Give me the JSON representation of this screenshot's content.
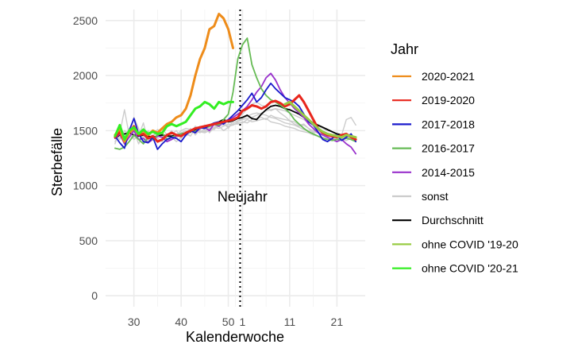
{
  "chart_data": {
    "type": "line",
    "xlabel": "Kalenderwoche",
    "ylabel": "Sterbefälle",
    "ylim": [
      -100,
      2600
    ],
    "yticks": [
      0,
      500,
      1000,
      1500,
      2000,
      2500
    ],
    "xticks": [
      {
        "label": "30",
        "pos": 4
      },
      {
        "label": "40",
        "pos": 14
      },
      {
        "label": "50",
        "pos": 24
      },
      {
        "label": "1",
        "pos": 27
      },
      {
        "label": "11",
        "pos": 37
      },
      {
        "label": "21",
        "pos": 47
      }
    ],
    "xlim": [
      -2,
      53
    ],
    "grid": true,
    "legend_title": "Jahr",
    "legend_position": "right",
    "annotation": {
      "text": "Neujahr",
      "x": 27,
      "y": 900
    },
    "vline_x": 26.5,
    "series": [
      {
        "name": "sonst",
        "color": "#cccccc",
        "width": 1.4,
        "values": [
          1400,
          1480,
          1450,
          1500,
          1420,
          1450,
          1480,
          1430,
          1420,
          1470,
          1450,
          1430,
          1420,
          1450,
          1480,
          1500,
          1490,
          1500,
          1480,
          1520,
          1510,
          1530,
          1520,
          1540,
          1560,
          1550,
          1580,
          1600,
          1610,
          1620,
          1640,
          1660,
          1680,
          1690,
          1700,
          1690,
          1680,
          1660,
          1640,
          1620,
          1600,
          1570,
          1560,
          1540,
          1520,
          1500,
          1490,
          1470,
          1460,
          1460,
          1450,
          1440
        ]
      },
      {
        "name": "sonst",
        "color": "#cccccc",
        "width": 1.4,
        "values": [
          1380,
          1520,
          1420,
          1470,
          1500,
          1380,
          1460,
          1400,
          1460,
          1430,
          1400,
          1460,
          1440,
          1400,
          1440,
          1470,
          1450,
          1520,
          1490,
          1480,
          1500,
          1520,
          1540,
          1500,
          1530,
          1560,
          1560,
          1580,
          1570,
          1600,
          1610,
          1620,
          1600,
          1640,
          1620,
          1610,
          1600,
          1590,
          1580,
          1550,
          1560,
          1520,
          1500,
          1480,
          1470,
          1460,
          1440,
          1420,
          1450,
          1430,
          1430,
          1420
        ]
      },
      {
        "name": "sonst",
        "color": "#cccccc",
        "width": 1.4,
        "values": [
          1450,
          1420,
          1500,
          1470,
          1620,
          1520,
          1400,
          1480,
          1450,
          1510,
          1480,
          1400,
          1470,
          1500,
          1430,
          1480,
          1520,
          1460,
          1510,
          1550,
          1480,
          1530,
          1560,
          1580,
          1520,
          1590,
          1620,
          1650,
          1700,
          1740,
          1760,
          1730,
          1720,
          1680,
          1700,
          1660,
          1630,
          1590,
          1560,
          1540,
          1550,
          1520,
          1480,
          1490,
          1460,
          1470,
          1440,
          1480,
          1460,
          1600,
          1620,
          1550
        ]
      },
      {
        "name": "sonst",
        "color": "#cccccc",
        "width": 1.4,
        "values": [
          1430,
          1470,
          1690,
          1460,
          1420,
          1450,
          1570,
          1400,
          1450,
          1480,
          1520,
          1460,
          1440,
          1460,
          1500,
          1520,
          1510,
          1480,
          1540,
          1500,
          1530,
          1550,
          1540,
          1560,
          1580,
          1570,
          1590,
          1610,
          1630,
          1650,
          1660,
          1650,
          1640,
          1620,
          1610,
          1590,
          1570,
          1560,
          1550,
          1530,
          1510,
          1500,
          1490,
          1480,
          1470,
          1450,
          1450,
          1440,
          1430,
          1450,
          1420,
          1410
        ]
      },
      {
        "name": "sonst",
        "color": "#cccccc",
        "width": 1.4,
        "values": [
          1460,
          1440,
          1430,
          1520,
          1440,
          1480,
          1440,
          1500,
          1430,
          1440,
          1470,
          1450,
          1500,
          1430,
          1470,
          1450,
          1480,
          1540,
          1500,
          1490,
          1520,
          1510,
          1560,
          1550,
          1540,
          1550,
          1570,
          1570,
          1600,
          1580,
          1590,
          1600,
          1610,
          1580,
          1570,
          1560,
          1540,
          1530,
          1520,
          1500,
          1490,
          1480,
          1460,
          1450,
          1440,
          1430,
          1420,
          1430,
          1420,
          1410,
          1430,
          1420
        ]
      },
      {
        "name": "Durchschnitt",
        "color": "#000000",
        "width": 1.8,
        "values": [
          1430,
          1460,
          1470,
          1480,
          1460,
          1450,
          1460,
          1450,
          1440,
          1450,
          1460,
          1450,
          1450,
          1460,
          1470,
          1480,
          1490,
          1510,
          1520,
          1530,
          1540,
          1560,
          1580,
          1600,
          1580,
          1590,
          1610,
          1620,
          1640,
          1610,
          1600,
          1650,
          1690,
          1720,
          1730,
          1720,
          1700,
          1690,
          1670,
          1650,
          1620,
          1600,
          1570,
          1550,
          1530,
          1510,
          1490,
          1470,
          1460,
          1450,
          1450,
          1440
        ]
      },
      {
        "name": "2014-2015",
        "color": "#9932cc",
        "width": 1.8,
        "values": [
          1430,
          1470,
          1380,
          1440,
          1500,
          1420,
          1430,
          1390,
          1420,
          1450,
          1440,
          1400,
          1420,
          1450,
          1470,
          1460,
          1500,
          1480,
          1520,
          1530,
          1500,
          1560,
          1540,
          1580,
          1600,
          1620,
          1650,
          1680,
          1720,
          1780,
          1850,
          1900,
          1980,
          2020,
          1960,
          1870,
          1800,
          1750,
          1700,
          1660,
          1620,
          1560,
          1520,
          1480,
          1460,
          1440,
          1420,
          1400,
          1420,
          1380,
          1350,
          1290
        ]
      },
      {
        "name": "2016-2017",
        "color": "#66bb55",
        "width": 1.8,
        "values": [
          1340,
          1330,
          1350,
          1400,
          1460,
          1420,
          1380,
          1440,
          1420,
          1460,
          1480,
          1420,
          1440,
          1460,
          1470,
          1480,
          1500,
          1490,
          1530,
          1520,
          1540,
          1560,
          1550,
          1600,
          1650,
          1850,
          2150,
          2280,
          2340,
          2100,
          1980,
          1880,
          1820,
          1780,
          1760,
          1730,
          1700,
          1660,
          1600,
          1560,
          1520,
          1490,
          1470,
          1450,
          1430,
          1420,
          1410,
          1420,
          1420,
          1430,
          1420,
          1400
        ]
      },
      {
        "name": "2017-2018",
        "color": "#1a1acc",
        "width": 1.8,
        "values": [
          1450,
          1390,
          1340,
          1500,
          1610,
          1470,
          1400,
          1390,
          1440,
          1330,
          1380,
          1420,
          1440,
          1430,
          1400,
          1460,
          1500,
          1480,
          1530,
          1520,
          1550,
          1570,
          1580,
          1560,
          1600,
          1640,
          1680,
          1730,
          1780,
          1840,
          1760,
          1800,
          1870,
          1930,
          1880,
          1840,
          1800,
          1780,
          1760,
          1720,
          1650,
          1580,
          1550,
          1490,
          1420,
          1400,
          1430,
          1460,
          1410,
          1440,
          1470,
          1400
        ]
      },
      {
        "name": "2019-2020",
        "color": "#e8261c",
        "width": 3,
        "values": [
          1440,
          1490,
          1400,
          1480,
          1540,
          1460,
          1470,
          1430,
          1450,
          1400,
          1420,
          1460,
          1480,
          1460,
          1450,
          1480,
          1500,
          1520,
          1530,
          1540,
          1550,
          1560,
          1570,
          1580,
          1590,
          1600,
          1620,
          1680,
          1700,
          1730,
          1720,
          1700,
          1720,
          1760,
          1770,
          1750,
          1720,
          1740,
          1780,
          1820,
          1760,
          1680,
          1600,
          1520,
          1480,
          1460,
          1450,
          1440,
          1460,
          1470,
          1440,
          1420
        ]
      },
      {
        "name": "ohne COVID '19-20",
        "color": "#99cc44",
        "width": 3,
        "values": [
          null,
          null,
          null,
          null,
          null,
          null,
          null,
          null,
          null,
          null,
          null,
          null,
          null,
          null,
          null,
          null,
          null,
          null,
          null,
          null,
          null,
          null,
          null,
          null,
          null,
          null,
          null,
          null,
          null,
          null,
          null,
          null,
          null,
          null,
          null,
          null,
          1740,
          1760,
          1720,
          1680,
          1640,
          1600,
          1560,
          1520,
          1490,
          1470,
          1460,
          1450,
          1440,
          1460,
          1450,
          1440
        ]
      },
      {
        "name": "2020-2021",
        "color": "#ee8c1a",
        "width": 3,
        "values": [
          1460,
          1520,
          1400,
          1480,
          1520,
          1470,
          1500,
          1460,
          1500,
          1480,
          1520,
          1560,
          1580,
          1620,
          1640,
          1700,
          1820,
          2000,
          2150,
          2250,
          2420,
          2450,
          2560,
          2520,
          2420,
          2250
        ]
      },
      {
        "name": "ohne COVID '20-21",
        "color": "#33ee22",
        "width": 3,
        "values": [
          1450,
          1550,
          1420,
          1500,
          1530,
          1470,
          1510,
          1470,
          1490,
          1470,
          1480,
          1540,
          1560,
          1540,
          1560,
          1580,
          1640,
          1700,
          1720,
          1760,
          1740,
          1700,
          1760,
          1740,
          1760,
          1760
        ]
      }
    ],
    "legend": [
      {
        "name": "2020-2021",
        "color": "#ee8c1a"
      },
      {
        "name": "2019-2020",
        "color": "#e8261c"
      },
      {
        "name": "2017-2018",
        "color": "#1a1acc"
      },
      {
        "name": "2016-2017",
        "color": "#66bb55"
      },
      {
        "name": "2014-2015",
        "color": "#9932cc"
      },
      {
        "name": "sonst",
        "color": "#cccccc"
      },
      {
        "name": "Durchschnitt",
        "color": "#000000"
      },
      {
        "name": "ohne COVID '19-20",
        "color": "#99cc44"
      },
      {
        "name": "ohne COVID '20-21",
        "color": "#33ee22"
      }
    ]
  }
}
